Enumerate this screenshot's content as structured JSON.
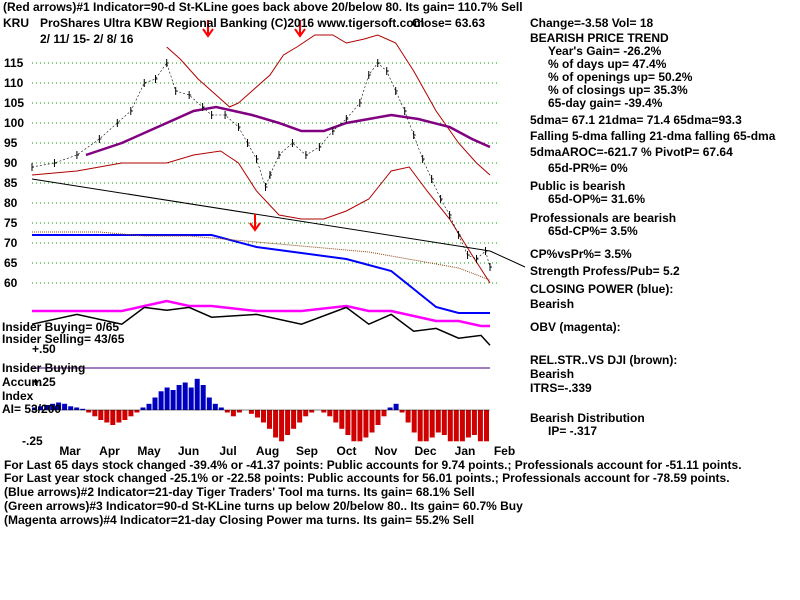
{
  "header": {
    "line1": "(Red arrows)#1 Indicator=90-d St-KLine goes back above 20/below 80.  Its gain= 110.7% Sell",
    "ticker": "KRU",
    "title": "ProShares Ultra KBW Regional Banking  (C)2016 www.tigersoft.com",
    "close": "Close=   63.63",
    "change": "Change=-3.58 Vol= 18",
    "dates": "2/ 11/ 15-  2/ 8/ 16"
  },
  "side": {
    "trend": "BEARISH PRICE TREND",
    "years_gain": "Year's Gain= -26.2%",
    "days_up": "% of days up= 47.4%",
    "openings_up": "% of openings up= 50.2%",
    "closings_up": "% of closings up= 35.3%",
    "gain65": "65-day gain= -39.4%",
    "dma": "5dma=  67.1  21dma=  71.4  65dma=93.3",
    "falling": "Falling 5-dma falling 21-dma falling 65-dma",
    "aroc": "5dmaAROC=-621.7 %  PivotP=  67.64",
    "pr": "65d-PR%= 0%",
    "public": "Public is bearish",
    "op": "65d-OP%= 31.6%",
    "professionals": "Professionals are bearish",
    "cp": "65d-CP%= 3.5%",
    "cpvspr": "CP%vsPr%=  3.5%",
    "strength": "Strength Profess/Pub= 5.2",
    "closing_power": "CLOSING POWER (blue):",
    "cp_bearish": "Bearish",
    "obv": "OBV (magenta):",
    "relstr": "REL.STR..VS DJI (brown):",
    "rs_bearish": "Bearish",
    "itrs": "ITRS=-.339",
    "distribution": "Bearish Distribution",
    "ip": "IP= -.317"
  },
  "indicator": {
    "insider_buying": "Insider Buying= 0/65",
    "insider_selling": "Insider Selling= 43/65",
    "plus50": "+.50",
    "insider_buying2": "Insider Buying",
    "accum": "Accum",
    "plus25": "+.25",
    "index": "Index",
    "ai": "AI= 53/200",
    "minus25": "-.25"
  },
  "footer": {
    "line1": "For Last 65 days stock changed -39.4% or -41.37 points:  Public accounts for  9.74 points.;  Professionals account for -51.11 points.",
    "line2": "For Last year stock changed -25.1% or -22.58 points:  Public accounts for  56.01 points.;  Professionals account for -78.59 points.",
    "line3": "(Blue arrows)#2 Indicator=21-day Tiger Traders' Tool ma turns. Its gain= 68.1% Sell",
    "line4": "(Green arrows)#3 Indicator=90-d St-KLine turns up below 20/below 80.. Its gain= 60.7% Buy",
    "line5": "(Magenta arrows)#4 Indicator=21-day Closing Power ma turns. Its gain= 55.2% Sell"
  },
  "colors": {
    "ma65": "#800080",
    "bands": "#b00000",
    "closing_power": "#0000ff",
    "obv": "#ff00ff",
    "relstr": "#8b4513",
    "accum_pos": "#0000c0",
    "accum_neg": "#d00000",
    "arrow_red": "#ff0000",
    "grid": "#00a000"
  },
  "chart_data": {
    "type": "line",
    "title": "KRU ProShares Ultra KBW Regional Banking",
    "x_tick_labels": [
      "Mar",
      "Apr",
      "May",
      "Jun",
      "Jul",
      "Aug",
      "Sep",
      "Oct",
      "Nov",
      "Dec",
      "Jan",
      "Feb"
    ],
    "y_tick_labels": [
      "115",
      "110",
      "105",
      "100",
      "95",
      "90",
      "85",
      "80",
      "75",
      "70",
      "65",
      "60"
    ],
    "ylim": [
      60,
      115
    ],
    "price_path": [
      [
        0,
        89
      ],
      [
        10,
        90
      ],
      [
        20,
        92
      ],
      [
        30,
        96
      ],
      [
        38,
        100
      ],
      [
        44,
        103
      ],
      [
        50,
        110
      ],
      [
        55,
        111
      ],
      [
        60,
        115
      ],
      [
        64,
        108
      ],
      [
        70,
        107
      ],
      [
        76,
        104
      ],
      [
        80,
        102
      ],
      [
        86,
        102
      ],
      [
        92,
        99
      ],
      [
        96,
        95
      ],
      [
        100,
        91
      ],
      [
        104,
        84
      ],
      [
        106,
        87
      ],
      [
        110,
        92
      ],
      [
        116,
        95
      ],
      [
        122,
        92
      ],
      [
        128,
        94
      ],
      [
        134,
        98
      ],
      [
        140,
        101
      ],
      [
        146,
        105
      ],
      [
        150,
        112
      ],
      [
        154,
        115
      ],
      [
        158,
        113
      ],
      [
        162,
        108
      ],
      [
        166,
        103
      ],
      [
        170,
        97
      ],
      [
        174,
        91
      ],
      [
        178,
        86
      ],
      [
        182,
        81
      ],
      [
        186,
        77
      ],
      [
        190,
        72
      ],
      [
        194,
        67
      ],
      [
        198,
        66
      ],
      [
        202,
        68
      ],
      [
        204,
        64
      ]
    ],
    "ma65_path": [
      [
        24,
        92
      ],
      [
        40,
        95
      ],
      [
        56,
        99
      ],
      [
        72,
        103
      ],
      [
        82,
        104
      ],
      [
        90,
        103
      ],
      [
        98,
        102
      ],
      [
        110,
        100
      ],
      [
        120,
        98
      ],
      [
        130,
        98
      ],
      [
        140,
        100
      ],
      [
        150,
        101
      ],
      [
        160,
        102
      ],
      [
        172,
        101
      ],
      [
        186,
        99
      ],
      [
        196,
        96
      ],
      [
        204,
        94
      ]
    ],
    "upper_band": [
      [
        60,
        119
      ],
      [
        66,
        116
      ],
      [
        74,
        111
      ],
      [
        82,
        107
      ],
      [
        88,
        104
      ],
      [
        92,
        105
      ],
      [
        98,
        108
      ],
      [
        106,
        112
      ],
      [
        112,
        117
      ],
      [
        118,
        119
      ],
      [
        126,
        122
      ],
      [
        134,
        122
      ],
      [
        140,
        120
      ],
      [
        148,
        121
      ],
      [
        154,
        122
      ],
      [
        162,
        120
      ],
      [
        170,
        113
      ],
      [
        180,
        103
      ],
      [
        190,
        95
      ],
      [
        198,
        90
      ],
      [
        204,
        87
      ]
    ],
    "lower_band": [
      [
        0,
        87
      ],
      [
        20,
        88
      ],
      [
        40,
        90
      ],
      [
        60,
        90
      ],
      [
        72,
        92
      ],
      [
        84,
        93
      ],
      [
        92,
        90
      ],
      [
        100,
        83
      ],
      [
        110,
        77
      ],
      [
        120,
        76
      ],
      [
        130,
        76
      ],
      [
        140,
        78
      ],
      [
        150,
        81
      ],
      [
        160,
        88
      ],
      [
        168,
        89
      ],
      [
        176,
        83
      ],
      [
        186,
        76
      ],
      [
        196,
        67
      ],
      [
        204,
        60
      ]
    ],
    "trendline": [
      [
        0,
        86
      ],
      [
        204,
        68
      ]
    ],
    "closing_power": [
      [
        0,
        72
      ],
      [
        20,
        72
      ],
      [
        40,
        72
      ],
      [
        60,
        72
      ],
      [
        80,
        72
      ],
      [
        100,
        70
      ],
      [
        120,
        69
      ],
      [
        140,
        68
      ],
      [
        160,
        66
      ],
      [
        170,
        63
      ],
      [
        180,
        60
      ],
      [
        190,
        59
      ],
      [
        200,
        59
      ],
      [
        204,
        59
      ]
    ],
    "relstr_dji": [
      [
        0,
        73
      ],
      [
        30,
        73
      ],
      [
        50,
        72
      ],
      [
        70,
        72
      ],
      [
        90,
        71
      ],
      [
        110,
        70
      ],
      [
        130,
        69
      ],
      [
        150,
        68
      ],
      [
        170,
        66
      ],
      [
        190,
        64
      ],
      [
        204,
        61
      ]
    ],
    "obv": [
      [
        0,
        62
      ],
      [
        20,
        62
      ],
      [
        40,
        62
      ],
      [
        50,
        63
      ],
      [
        60,
        64
      ],
      [
        70,
        63
      ],
      [
        80,
        63
      ],
      [
        100,
        62
      ],
      [
        120,
        62
      ],
      [
        140,
        63
      ],
      [
        150,
        62
      ],
      [
        160,
        62
      ],
      [
        170,
        61
      ],
      [
        180,
        60
      ],
      [
        190,
        60
      ],
      [
        200,
        59
      ],
      [
        204,
        59
      ]
    ],
    "accum_index": {
      "ylim": [
        -0.25,
        0.5
      ],
      "values": [
        0.02,
        0.03,
        0.04,
        0.05,
        0.06,
        0.05,
        0.03,
        0.02,
        0.01,
        -0.02,
        -0.05,
        -0.08,
        -0.1,
        -0.12,
        -0.1,
        -0.08,
        -0.05,
        -0.02,
        0.02,
        0.05,
        0.1,
        0.15,
        0.18,
        0.16,
        0.2,
        0.22,
        0.18,
        0.25,
        0.2,
        0.1,
        0.05,
        0.02,
        -0.02,
        -0.05,
        -0.02,
        0.0,
        -0.03,
        -0.06,
        -0.1,
        -0.15,
        -0.22,
        -0.25,
        -0.2,
        -0.15,
        -0.1,
        -0.05,
        -0.02,
        0.0,
        -0.02,
        -0.05,
        -0.1,
        -0.15,
        -0.2,
        -0.25,
        -0.25,
        -0.22,
        -0.18,
        -0.12,
        -0.05,
        0.02,
        0.05,
        -0.02,
        -0.1,
        -0.18,
        -0.25,
        -0.25,
        -0.22,
        -0.18,
        -0.2,
        -0.25,
        -0.25,
        -0.25,
        -0.22,
        -0.2,
        -0.25,
        -0.25
      ]
    }
  }
}
